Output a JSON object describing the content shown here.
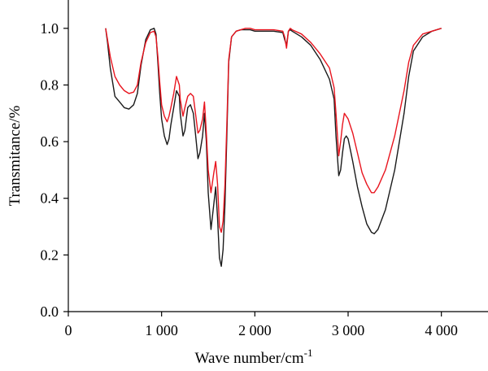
{
  "chart_data": {
    "type": "line",
    "title": "",
    "xlabel": "Wave number/cm",
    "xlabel_superscript": "-1",
    "ylabel": "Transmitance/%",
    "xlim": [
      0,
      4500
    ],
    "ylim": [
      0,
      1.1
    ],
    "x_ticks": [
      0,
      1000,
      2000,
      3000,
      4000
    ],
    "x_tick_labels": [
      "0",
      "1 000",
      "2 000",
      "3 000",
      "4 000"
    ],
    "y_ticks": [
      0.0,
      0.2,
      0.4,
      0.6,
      0.8,
      1.0
    ],
    "y_tick_labels": [
      "0.0",
      "0.2",
      "0.4",
      "0.6",
      "0.8",
      "1.0"
    ],
    "grid": false,
    "legend": "none",
    "colors": {
      "series1": "#1a1a1a",
      "series2": "#e8141e",
      "axis": "#000000"
    },
    "series": [
      {
        "color": "#1a1a1a",
        "x": [
          400,
          420,
          450,
          500,
          550,
          600,
          650,
          700,
          740,
          780,
          830,
          880,
          920,
          940,
          960,
          980,
          1000,
          1030,
          1060,
          1080,
          1100,
          1130,
          1160,
          1190,
          1200,
          1230,
          1250,
          1280,
          1310,
          1340,
          1360,
          1390,
          1410,
          1440,
          1460,
          1480,
          1500,
          1530,
          1560,
          1580,
          1600,
          1620,
          1640,
          1660,
          1680,
          1700,
          1720,
          1750,
          1800,
          1850,
          1900,
          1950,
          2000,
          2100,
          2200,
          2300,
          2320,
          2340,
          2360,
          2380,
          2400,
          2500,
          2600,
          2700,
          2800,
          2850,
          2870,
          2900,
          2920,
          2940,
          2960,
          2980,
          3000,
          3050,
          3100,
          3150,
          3200,
          3250,
          3280,
          3320,
          3400,
          3500,
          3600,
          3650,
          3700,
          3800,
          3900,
          4000
        ],
        "y": [
          1.0,
          0.95,
          0.86,
          0.76,
          0.74,
          0.72,
          0.715,
          0.73,
          0.77,
          0.87,
          0.96,
          0.995,
          1.0,
          0.98,
          0.88,
          0.77,
          0.68,
          0.62,
          0.59,
          0.61,
          0.66,
          0.72,
          0.78,
          0.76,
          0.7,
          0.62,
          0.64,
          0.72,
          0.73,
          0.7,
          0.64,
          0.54,
          0.56,
          0.62,
          0.7,
          0.6,
          0.42,
          0.29,
          0.38,
          0.44,
          0.33,
          0.19,
          0.16,
          0.22,
          0.38,
          0.62,
          0.88,
          0.97,
          0.99,
          0.995,
          0.995,
          0.995,
          0.99,
          0.99,
          0.99,
          0.985,
          0.96,
          0.94,
          0.99,
          0.995,
          0.99,
          0.97,
          0.94,
          0.89,
          0.82,
          0.75,
          0.62,
          0.48,
          0.5,
          0.56,
          0.61,
          0.62,
          0.61,
          0.53,
          0.44,
          0.37,
          0.31,
          0.28,
          0.275,
          0.29,
          0.36,
          0.5,
          0.7,
          0.83,
          0.92,
          0.97,
          0.99,
          1.0
        ]
      },
      {
        "color": "#e8141e",
        "x": [
          400,
          420,
          450,
          500,
          550,
          600,
          650,
          700,
          740,
          780,
          830,
          880,
          920,
          940,
          960,
          980,
          1000,
          1030,
          1060,
          1080,
          1100,
          1130,
          1160,
          1190,
          1200,
          1230,
          1250,
          1280,
          1310,
          1340,
          1360,
          1390,
          1410,
          1440,
          1460,
          1480,
          1500,
          1530,
          1560,
          1580,
          1600,
          1620,
          1640,
          1660,
          1680,
          1700,
          1720,
          1750,
          1800,
          1850,
          1900,
          1950,
          2000,
          2100,
          2200,
          2300,
          2320,
          2340,
          2360,
          2380,
          2400,
          2500,
          2600,
          2700,
          2800,
          2850,
          2870,
          2900,
          2920,
          2940,
          2960,
          2980,
          3000,
          3050,
          3100,
          3150,
          3200,
          3250,
          3280,
          3320,
          3400,
          3500,
          3600,
          3650,
          3700,
          3800,
          3900,
          4000
        ],
        "y": [
          1.0,
          0.96,
          0.9,
          0.83,
          0.8,
          0.78,
          0.77,
          0.775,
          0.8,
          0.88,
          0.95,
          0.985,
          0.99,
          0.97,
          0.9,
          0.81,
          0.73,
          0.69,
          0.67,
          0.69,
          0.72,
          0.77,
          0.83,
          0.8,
          0.75,
          0.69,
          0.72,
          0.76,
          0.77,
          0.76,
          0.71,
          0.63,
          0.64,
          0.68,
          0.74,
          0.63,
          0.5,
          0.42,
          0.49,
          0.53,
          0.45,
          0.3,
          0.28,
          0.32,
          0.45,
          0.66,
          0.89,
          0.97,
          0.99,
          0.995,
          1.0,
          1.0,
          0.995,
          0.995,
          0.995,
          0.99,
          0.97,
          0.93,
          0.99,
          1.0,
          0.995,
          0.98,
          0.95,
          0.91,
          0.86,
          0.79,
          0.7,
          0.55,
          0.6,
          0.66,
          0.7,
          0.69,
          0.68,
          0.63,
          0.56,
          0.49,
          0.45,
          0.42,
          0.42,
          0.44,
          0.5,
          0.62,
          0.78,
          0.88,
          0.94,
          0.98,
          0.99,
          1.0
        ]
      }
    ]
  }
}
